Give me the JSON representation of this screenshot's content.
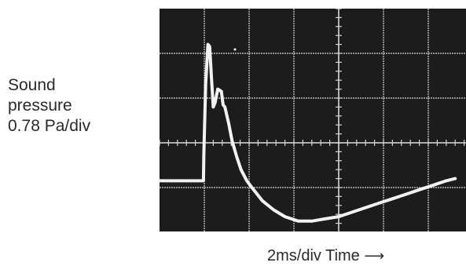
{
  "chart_data": {
    "type": "line",
    "title": "",
    "ylabel_lines": [
      "Sound",
      "pressure",
      "0.78 Pa/div"
    ],
    "xlabel": "2ms/div Time",
    "x_arrow": "⟶",
    "x_unit": "div",
    "y_unit": "div",
    "xlim": [
      0,
      6.6
    ],
    "ylim": [
      -2.25,
      2.55
    ],
    "grid": true,
    "colors": {
      "screen": "#1c1c1c",
      "grid": "#d2d2d2",
      "trace": "#f2f2f2"
    },
    "series": [
      {
        "values_x": [
          0,
          0.98,
          0.99,
          1.03,
          1.08,
          1.12,
          1.16,
          1.2,
          1.24,
          1.3,
          1.38,
          1.42,
          1.46,
          1.54,
          1.62,
          1.72,
          1.82,
          1.95,
          2.1,
          2.3,
          2.55,
          2.8,
          3.1,
          3.4,
          3.7,
          4.0,
          4.3,
          4.6,
          4.9,
          5.2,
          5.5,
          5.8,
          6.1,
          6.4,
          6.6
        ],
        "values_y": [
          -0.85,
          -0.85,
          -0.25,
          1.3,
          2.2,
          2.15,
          1.45,
          0.8,
          0.9,
          1.2,
          1.15,
          0.85,
          0.8,
          0.45,
          0.05,
          -0.3,
          -0.6,
          -0.85,
          -1.05,
          -1.3,
          -1.5,
          -1.65,
          -1.75,
          -1.75,
          -1.7,
          -1.65,
          -1.55,
          -1.45,
          -1.35,
          -1.25,
          -1.15,
          -1.05,
          -0.95,
          -0.85,
          -0.8
        ]
      }
    ]
  }
}
